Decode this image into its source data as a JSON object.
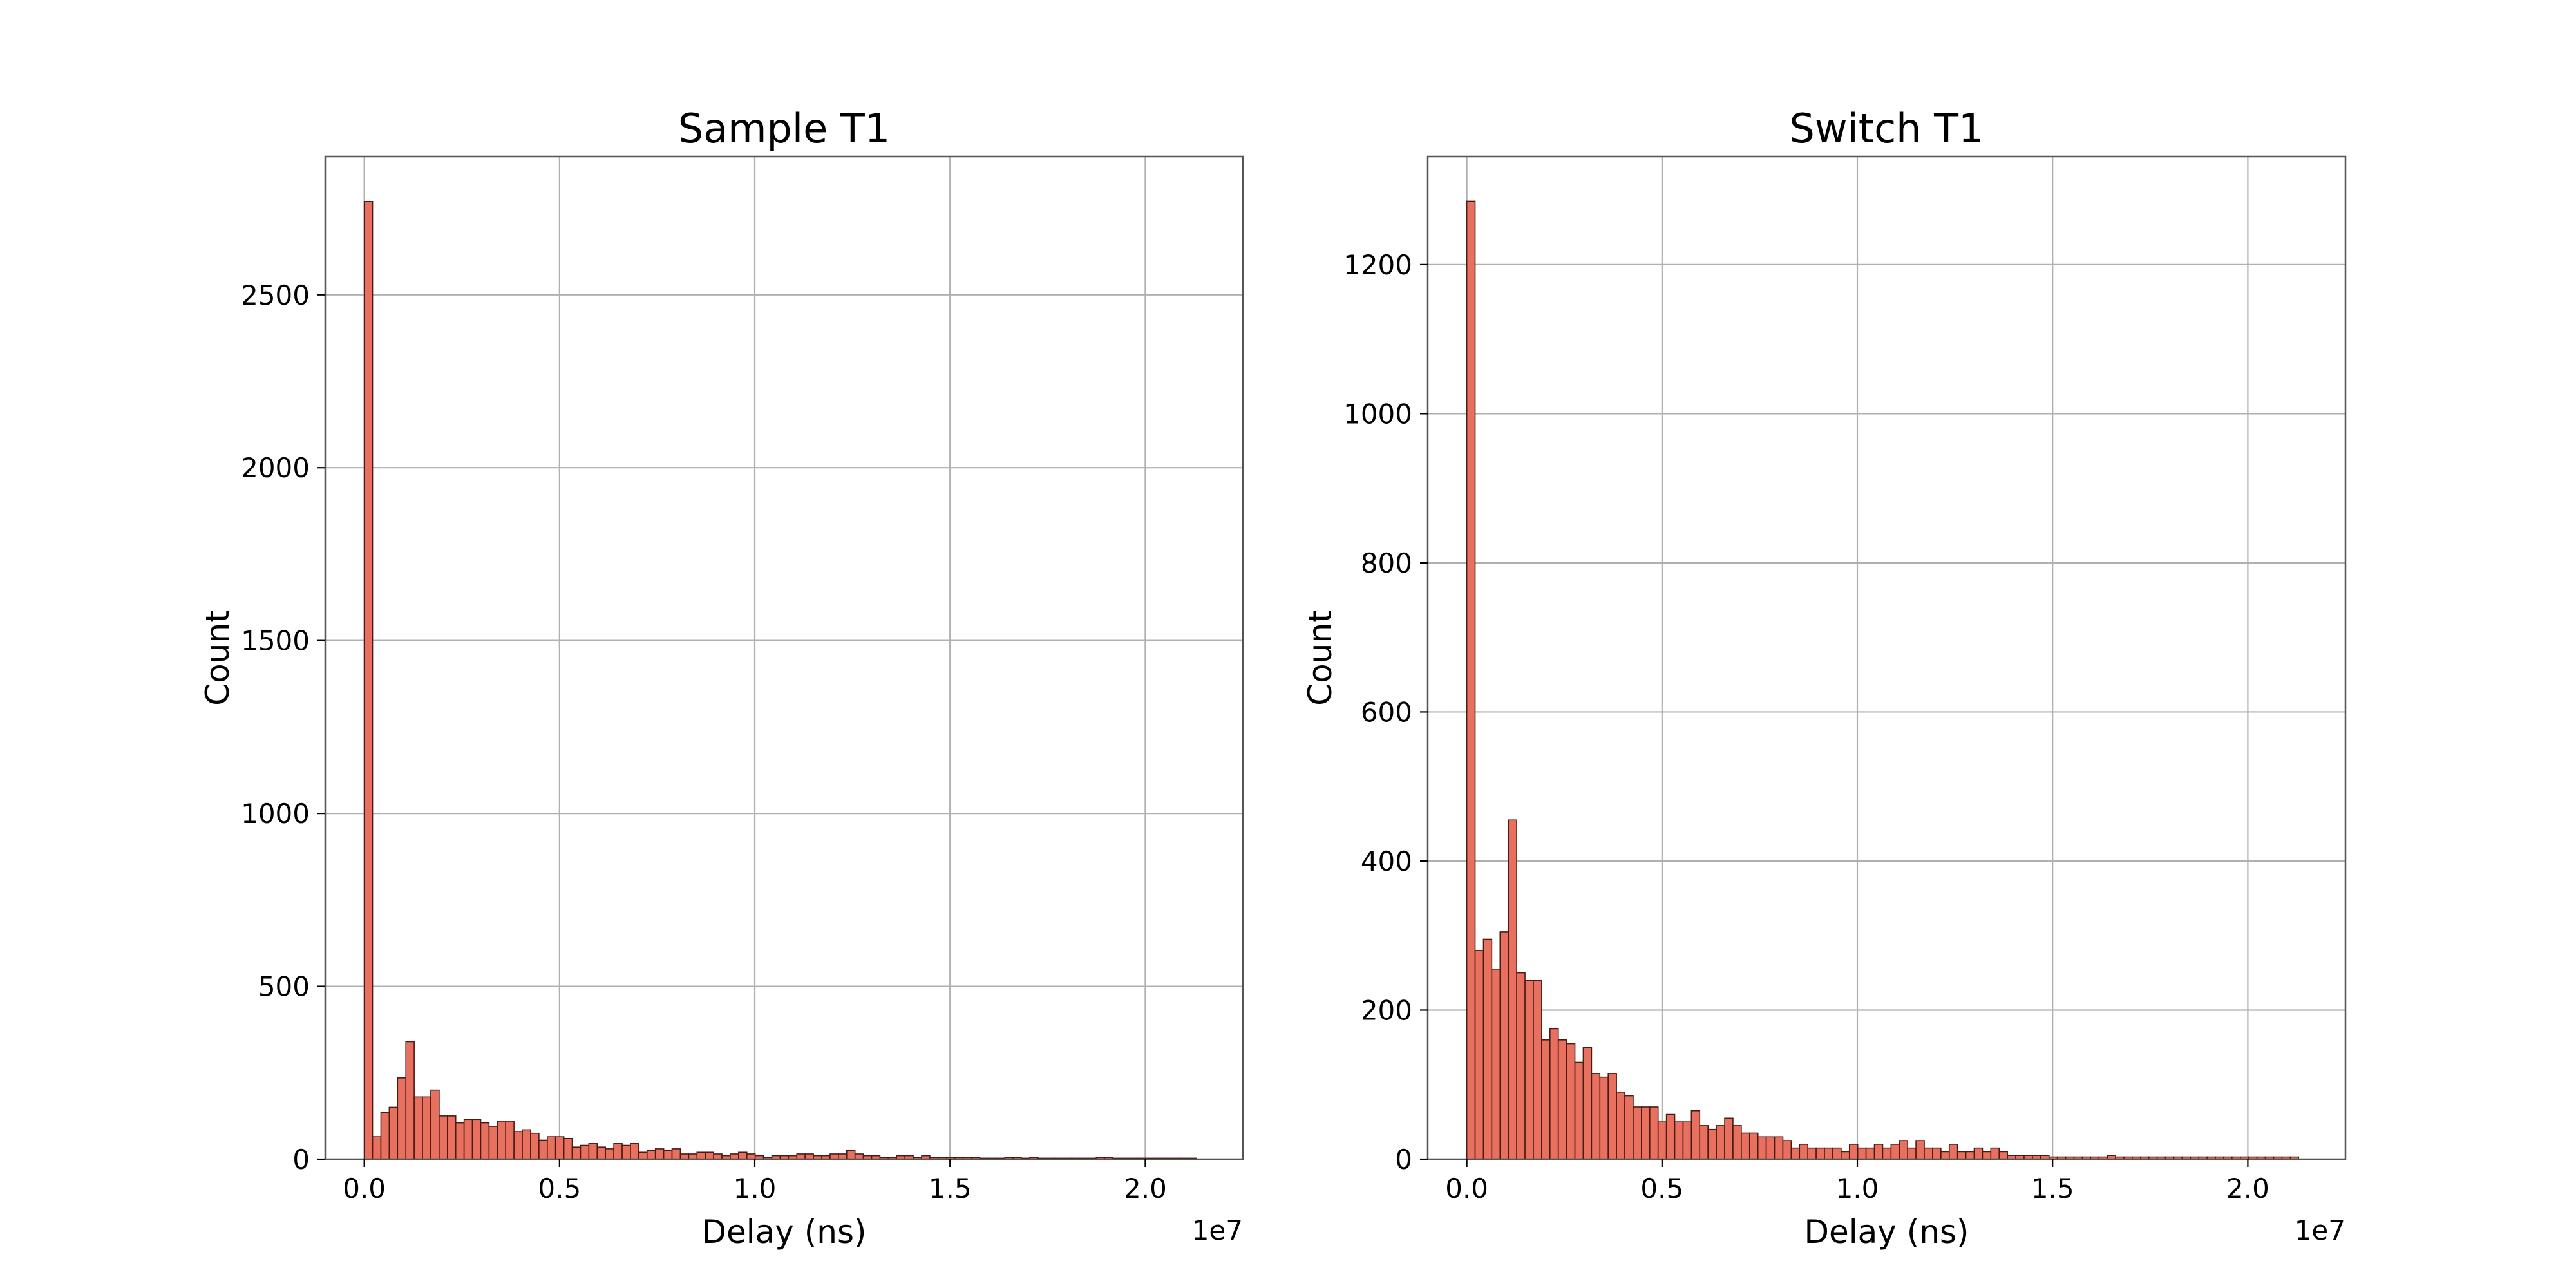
{
  "chart_data": [
    {
      "type": "bar",
      "title": "Sample T1",
      "xlabel": "Delay (ns)",
      "ylabel": "Count",
      "x_offset_label": "1e7",
      "xlim": [
        -0.1,
        2.25
      ],
      "ylim": [
        0,
        2900
      ],
      "x_ticks": [
        0.0,
        0.5,
        1.0,
        1.5,
        2.0
      ],
      "x_tick_labels": [
        "0.0",
        "0.5",
        "1.0",
        "1.5",
        "2.0"
      ],
      "y_ticks": [
        0,
        500,
        1000,
        1500,
        2000,
        2500
      ],
      "y_tick_labels": [
        "0",
        "500",
        "1000",
        "1500",
        "2000",
        "2500"
      ],
      "grid": true,
      "bar_color": "#e8705f",
      "bin_start": 0.0,
      "bin_width": 0.0213,
      "values": [
        2770,
        65,
        135,
        150,
        235,
        340,
        180,
        180,
        200,
        125,
        125,
        105,
        115,
        115,
        105,
        95,
        110,
        110,
        80,
        85,
        75,
        55,
        65,
        65,
        60,
        35,
        40,
        45,
        35,
        30,
        45,
        40,
        45,
        20,
        25,
        30,
        25,
        30,
        15,
        15,
        20,
        20,
        15,
        10,
        15,
        20,
        15,
        10,
        5,
        10,
        10,
        10,
        15,
        15,
        10,
        10,
        15,
        15,
        25,
        15,
        10,
        10,
        5,
        5,
        10,
        10,
        5,
        10,
        5,
        5,
        5,
        5,
        5,
        5,
        3,
        3,
        3,
        5,
        5,
        3,
        5,
        3,
        3,
        3,
        3,
        3,
        3,
        3,
        5,
        5,
        3,
        3,
        3,
        3,
        3,
        3,
        3,
        3,
        3,
        3
      ]
    },
    {
      "type": "bar",
      "title": "Switch T1",
      "xlabel": "Delay (ns)",
      "ylabel": "Count",
      "x_offset_label": "1e7",
      "xlim": [
        -0.1,
        2.25
      ],
      "ylim": [
        0,
        1345
      ],
      "x_ticks": [
        0.0,
        0.5,
        1.0,
        1.5,
        2.0
      ],
      "x_tick_labels": [
        "0.0",
        "0.5",
        "1.0",
        "1.5",
        "2.0"
      ],
      "y_ticks": [
        0,
        200,
        400,
        600,
        800,
        1000,
        1200
      ],
      "y_tick_labels": [
        "0",
        "200",
        "400",
        "600",
        "800",
        "1000",
        "1200"
      ],
      "grid": true,
      "bar_color": "#e8705f",
      "bin_start": 0.0,
      "bin_width": 0.0213,
      "values": [
        1285,
        280,
        295,
        255,
        305,
        455,
        250,
        240,
        240,
        160,
        175,
        160,
        155,
        130,
        150,
        115,
        110,
        115,
        90,
        85,
        70,
        70,
        70,
        50,
        60,
        50,
        50,
        65,
        45,
        40,
        45,
        55,
        45,
        35,
        35,
        30,
        30,
        30,
        25,
        15,
        20,
        15,
        15,
        15,
        15,
        10,
        20,
        15,
        15,
        20,
        15,
        20,
        25,
        15,
        25,
        15,
        15,
        10,
        20,
        10,
        10,
        15,
        10,
        15,
        10,
        5,
        5,
        5,
        5,
        5,
        3,
        3,
        3,
        3,
        3,
        3,
        3,
        5,
        3,
        3,
        3,
        3,
        3,
        3,
        3,
        3,
        3,
        3,
        3,
        3,
        3,
        3,
        3,
        3,
        3,
        3,
        3,
        3,
        3,
        3
      ]
    }
  ]
}
